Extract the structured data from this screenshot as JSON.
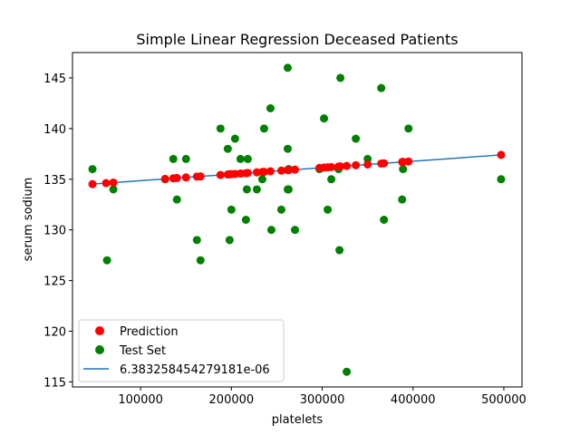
{
  "chart_data": {
    "type": "scatter",
    "title": "Simple Linear Regression Deceased Patients",
    "xlabel": "platelets",
    "ylabel": "serum sodium",
    "xlim": [
      25000,
      520000
    ],
    "ylim": [
      114.5,
      147.5
    ],
    "xticks": [
      100000,
      200000,
      300000,
      400000,
      500000
    ],
    "xtick_labels": [
      "100000",
      "200000",
      "300000",
      "400000",
      "500000"
    ],
    "yticks": [
      115,
      120,
      125,
      130,
      135,
      140,
      145
    ],
    "ytick_labels": [
      "115",
      "120",
      "125",
      "130",
      "135",
      "140",
      "145"
    ],
    "grid": false,
    "legend_position": "lower-left",
    "legend": [
      {
        "label": "Prediction",
        "kind": "marker",
        "color": "#ff0000"
      },
      {
        "label": "Test Set",
        "kind": "marker",
        "color": "#008000"
      },
      {
        "label": "6.383258454279181e-06",
        "kind": "line",
        "color": "#1f77b4"
      }
    ],
    "series": [
      {
        "name": "Test Set",
        "color": "#008000",
        "points": [
          [
            47000,
            136
          ],
          [
            63000,
            127
          ],
          [
            70000,
            134
          ],
          [
            127000,
            135
          ],
          [
            136000,
            137
          ],
          [
            140000,
            133
          ],
          [
            150000,
            137
          ],
          [
            162000,
            129
          ],
          [
            166000,
            127
          ],
          [
            188000,
            140
          ],
          [
            196000,
            138
          ],
          [
            198000,
            129
          ],
          [
            200000,
            132
          ],
          [
            204000,
            139
          ],
          [
            210000,
            137
          ],
          [
            216000,
            131
          ],
          [
            217000,
            134
          ],
          [
            218000,
            137
          ],
          [
            228000,
            134
          ],
          [
            234000,
            135
          ],
          [
            236000,
            140
          ],
          [
            243000,
            142
          ],
          [
            244000,
            130
          ],
          [
            255000,
            132
          ],
          [
            262000,
            146
          ],
          [
            262000,
            138
          ],
          [
            262000,
            134
          ],
          [
            263000,
            134
          ],
          [
            263000,
            136
          ],
          [
            270000,
            130
          ],
          [
            297000,
            136
          ],
          [
            302000,
            141
          ],
          [
            306000,
            132
          ],
          [
            310000,
            135
          ],
          [
            318000,
            136
          ],
          [
            320000,
            145
          ],
          [
            319000,
            128
          ],
          [
            327000,
            116
          ],
          [
            337000,
            139
          ],
          [
            350000,
            137
          ],
          [
            365000,
            144
          ],
          [
            368000,
            131
          ],
          [
            388000,
            133
          ],
          [
            389000,
            136
          ],
          [
            395000,
            140
          ],
          [
            497000,
            135
          ]
        ]
      },
      {
        "name": "Prediction",
        "color": "#ff0000",
        "points": [
          [
            47000,
            134.52
          ],
          [
            62000,
            134.62
          ],
          [
            70000,
            134.67
          ],
          [
            127000,
            135.03
          ],
          [
            136000,
            135.09
          ],
          [
            140000,
            135.12
          ],
          [
            150000,
            135.18
          ],
          [
            162000,
            135.26
          ],
          [
            166000,
            135.28
          ],
          [
            188000,
            135.42
          ],
          [
            196000,
            135.47
          ],
          [
            198000,
            135.49
          ],
          [
            200000,
            135.5
          ],
          [
            204000,
            135.52
          ],
          [
            210000,
            135.56
          ],
          [
            216000,
            135.6
          ],
          [
            218000,
            135.62
          ],
          [
            228000,
            135.68
          ],
          [
            234000,
            135.72
          ],
          [
            236000,
            135.73
          ],
          [
            243000,
            135.78
          ],
          [
            255000,
            135.85
          ],
          [
            262000,
            135.9
          ],
          [
            263000,
            135.9
          ],
          [
            270000,
            135.95
          ],
          [
            297000,
            136.12
          ],
          [
            302000,
            136.15
          ],
          [
            306000,
            136.18
          ],
          [
            310000,
            136.2
          ],
          [
            318000,
            136.25
          ],
          [
            320000,
            136.27
          ],
          [
            327000,
            136.31
          ],
          [
            337000,
            136.38
          ],
          [
            350000,
            136.46
          ],
          [
            365000,
            136.55
          ],
          [
            368000,
            136.57
          ],
          [
            388000,
            136.7
          ],
          [
            389000,
            136.71
          ],
          [
            395000,
            136.75
          ],
          [
            497000,
            137.4
          ]
        ]
      }
    ],
    "regression_line": {
      "name": "6.383258454279181e-06",
      "color": "#1f77b4",
      "points": [
        [
          47000,
          134.52
        ],
        [
          497000,
          137.4
        ]
      ]
    }
  }
}
